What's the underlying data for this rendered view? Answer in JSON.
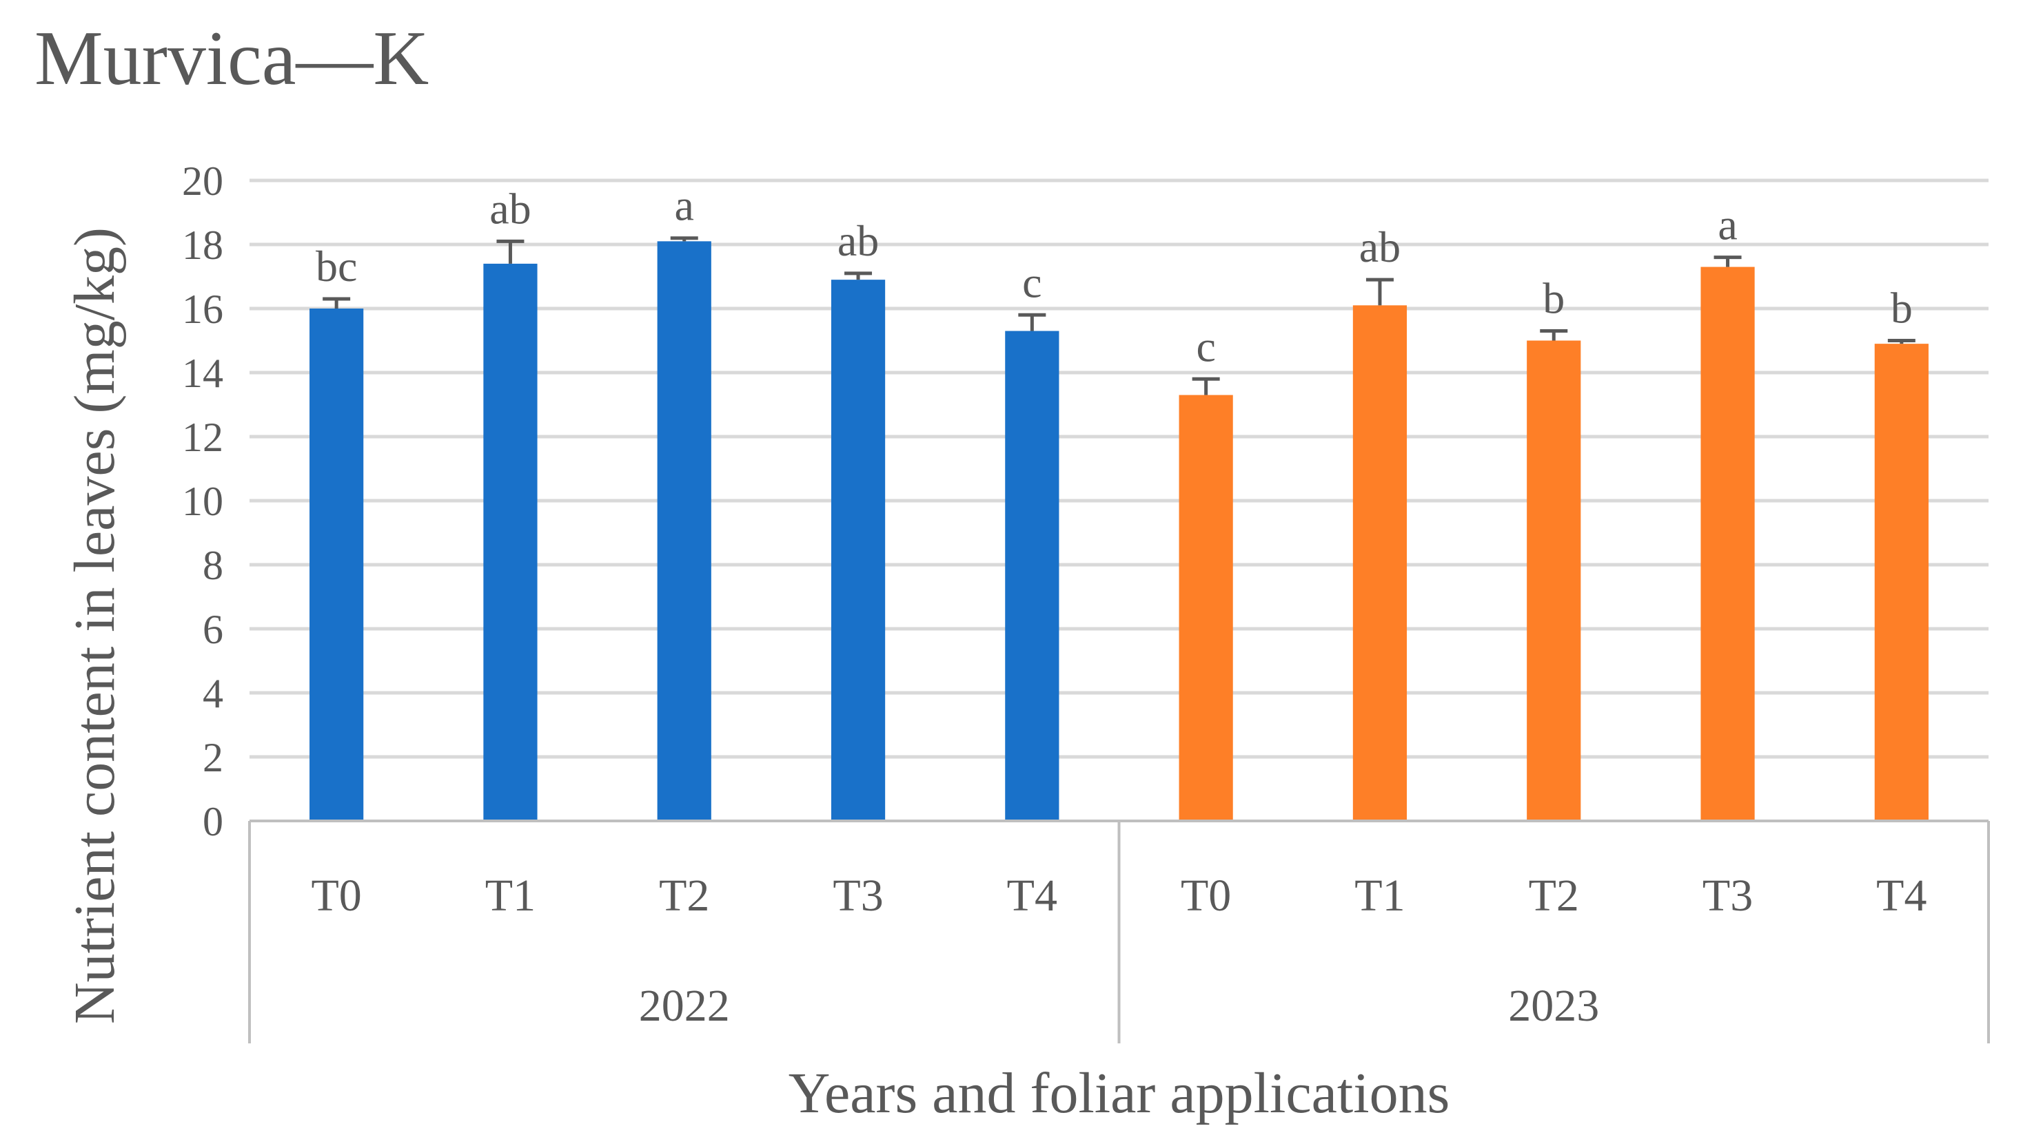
{
  "chart_data": {
    "type": "bar",
    "title": "Murvica—K",
    "xlabel": "Years and foliar applications",
    "ylabel": "Nutrient content in leaves (mg/kg)",
    "ylim": [
      0,
      20
    ],
    "yticks": [
      "0",
      "2",
      "4",
      "6",
      "8",
      "10",
      "12",
      "14",
      "16",
      "18",
      "20"
    ],
    "grid": true,
    "groups": [
      {
        "label": "2022",
        "color": "#1971C9",
        "categories": [
          "T0",
          "T1",
          "T2",
          "T3",
          "T4"
        ],
        "values": [
          16.0,
          17.4,
          18.1,
          16.9,
          15.3
        ],
        "errors": [
          0.3,
          0.7,
          0.1,
          0.2,
          0.5
        ],
        "letters": [
          "bc",
          "ab",
          "a",
          "ab",
          "c"
        ]
      },
      {
        "label": "2023",
        "color": "#FE7F27",
        "categories": [
          "T0",
          "T1",
          "T2",
          "T3",
          "T4"
        ],
        "values": [
          13.3,
          16.1,
          15.0,
          17.3,
          14.9
        ],
        "errors": [
          0.5,
          0.8,
          0.3,
          0.3,
          0.1
        ],
        "letters": [
          "c",
          "ab",
          "b",
          "a",
          "b"
        ]
      }
    ]
  }
}
